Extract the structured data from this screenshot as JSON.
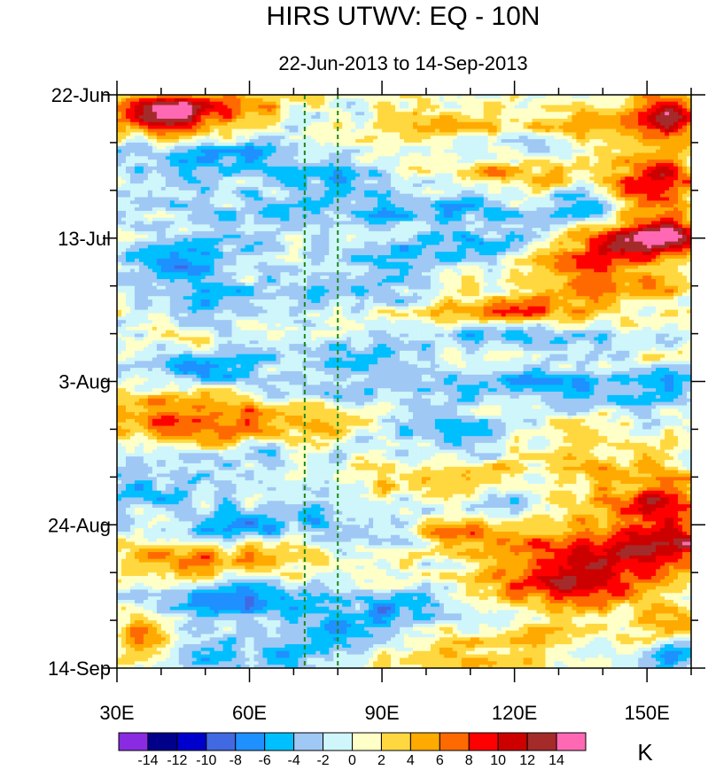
{
  "chart_data": {
    "type": "heatmap",
    "title": "HIRS UTWV: EQ - 10N",
    "subtitle": "22-Jun-2013 to 14-Sep-2013",
    "xlabel": "",
    "ylabel": "",
    "x_range": [
      30,
      160
    ],
    "x_ticks": [
      {
        "value": 30,
        "label": "30E"
      },
      {
        "value": 60,
        "label": "60E"
      },
      {
        "value": 90,
        "label": "90E"
      },
      {
        "value": 120,
        "label": "120E"
      },
      {
        "value": 150,
        "label": "150E"
      }
    ],
    "y_range_days": [
      0,
      84
    ],
    "y_ticks": [
      {
        "day": 0,
        "label": "22-Jun"
      },
      {
        "day": 21,
        "label": "13-Jul"
      },
      {
        "day": 42,
        "label": "3-Aug"
      },
      {
        "day": 63,
        "label": "24-Aug"
      },
      {
        "day": 84,
        "label": "14-Sep"
      }
    ],
    "reference_lines_lon": [
      72.5,
      80
    ],
    "reference_line_color": "#1a8a1a",
    "colorbar": {
      "unit": "K",
      "levels": [
        -14,
        -12,
        -10,
        -8,
        -6,
        -4,
        -2,
        0,
        2,
        4,
        6,
        8,
        10,
        12,
        14
      ],
      "level_labels": [
        "-14",
        "-12",
        "-10",
        "-8",
        "-6",
        "-4",
        "-2",
        "0",
        "2",
        "4",
        "6",
        "8",
        "10",
        "12",
        "14"
      ],
      "colors": [
        "#8a2be2",
        "#00008b",
        "#0000cd",
        "#4169e1",
        "#1e90ff",
        "#00bfff",
        "#a0c8f5",
        "#cff6fa",
        "#ffffc8",
        "#ffd840",
        "#ffaa00",
        "#ff6a00",
        "#ff0000",
        "#cd0000",
        "#a52a2a",
        "#ff69b4"
      ]
    },
    "anomaly_features": [
      {
        "lon": 45,
        "day": 2.5,
        "amp": 10,
        "sx": 8,
        "sy": 2.5
      },
      {
        "lon": 38,
        "day": 3,
        "amp": 6,
        "sx": 6,
        "sy": 2
      },
      {
        "lon": 60,
        "day": 1.5,
        "amp": 4,
        "sx": 8,
        "sy": 1.5
      },
      {
        "lon": 155,
        "day": 3,
        "amp": 11,
        "sx": 6,
        "sy": 2.5
      },
      {
        "lon": 140,
        "day": 4,
        "amp": 5,
        "sx": 8,
        "sy": 2
      },
      {
        "lon": 152,
        "day": 12.5,
        "amp": 12,
        "sx": 6,
        "sy": 2.5
      },
      {
        "lon": 120,
        "day": 11,
        "amp": 5,
        "sx": 12,
        "sy": 2
      },
      {
        "lon": 105,
        "day": 5,
        "amp": 3,
        "sx": 15,
        "sy": 3
      },
      {
        "lon": 60,
        "day": 9,
        "amp": -5,
        "sx": 12,
        "sy": 2
      },
      {
        "lon": 42,
        "day": 10,
        "amp": -4,
        "sx": 8,
        "sy": 2
      },
      {
        "lon": 80,
        "day": 12,
        "amp": -4,
        "sx": 10,
        "sy": 2
      },
      {
        "lon": 120,
        "day": 8,
        "amp": -4,
        "sx": 10,
        "sy": 1.5
      },
      {
        "lon": 135,
        "day": 17,
        "amp": -6,
        "sx": 6,
        "sy": 1.5
      },
      {
        "lon": 100,
        "day": 17,
        "amp": -5,
        "sx": 18,
        "sy": 2
      },
      {
        "lon": 60,
        "day": 17,
        "amp": -3,
        "sx": 15,
        "sy": 2
      },
      {
        "lon": 140,
        "day": 23,
        "amp": 8,
        "sx": 10,
        "sy": 2.5
      },
      {
        "lon": 155,
        "day": 21,
        "amp": 10,
        "sx": 5,
        "sy": 1.5
      },
      {
        "lon": 150,
        "day": 20,
        "amp": 6,
        "sx": 8,
        "sy": 2
      },
      {
        "lon": 45,
        "day": 24,
        "amp": -7,
        "sx": 12,
        "sy": 2
      },
      {
        "lon": 110,
        "day": 22,
        "amp": -5,
        "sx": 12,
        "sy": 1.5
      },
      {
        "lon": 90,
        "day": 24,
        "amp": -3,
        "sx": 10,
        "sy": 2
      },
      {
        "lon": 115,
        "day": 32,
        "amp": 6,
        "sx": 12,
        "sy": 1.5
      },
      {
        "lon": 145,
        "day": 28,
        "amp": 5,
        "sx": 10,
        "sy": 2
      },
      {
        "lon": 130,
        "day": 30,
        "amp": 4,
        "sx": 10,
        "sy": 2
      },
      {
        "lon": 55,
        "day": 30,
        "amp": -4,
        "sx": 15,
        "sy": 2
      },
      {
        "lon": 90,
        "day": 29,
        "amp": -3,
        "sx": 10,
        "sy": 2
      },
      {
        "lon": 120,
        "day": 35,
        "amp": -5,
        "sx": 15,
        "sy": 1.5
      },
      {
        "lon": 50,
        "day": 40,
        "amp": -7,
        "sx": 10,
        "sy": 1.5
      },
      {
        "lon": 80,
        "day": 38,
        "amp": -3,
        "sx": 12,
        "sy": 2
      },
      {
        "lon": 75,
        "day": 43.5,
        "amp": -6,
        "sx": 12,
        "sy": 1
      },
      {
        "lon": 120,
        "day": 42,
        "amp": -5,
        "sx": 15,
        "sy": 2
      },
      {
        "lon": 155,
        "day": 42,
        "amp": -5,
        "sx": 8,
        "sy": 1.5
      },
      {
        "lon": 140,
        "day": 45,
        "amp": -4,
        "sx": 12,
        "sy": 2
      },
      {
        "lon": 45,
        "day": 48,
        "amp": 8,
        "sx": 14,
        "sy": 3
      },
      {
        "lon": 75,
        "day": 47,
        "amp": 4,
        "sx": 12,
        "sy": 2
      },
      {
        "lon": 130,
        "day": 47,
        "amp": 3,
        "sx": 10,
        "sy": 2
      },
      {
        "lon": 105,
        "day": 49,
        "amp": -4,
        "sx": 12,
        "sy": 2
      },
      {
        "lon": 55,
        "day": 53,
        "amp": -3,
        "sx": 15,
        "sy": 2
      },
      {
        "lon": 100,
        "day": 57,
        "amp": 5,
        "sx": 15,
        "sy": 2
      },
      {
        "lon": 140,
        "day": 55,
        "amp": 4,
        "sx": 10,
        "sy": 2
      },
      {
        "lon": 155,
        "day": 59,
        "amp": 9,
        "sx": 5,
        "sy": 2.5
      },
      {
        "lon": 140,
        "day": 60,
        "amp": 6,
        "sx": 10,
        "sy": 2
      },
      {
        "lon": 40,
        "day": 58,
        "amp": -4,
        "sx": 10,
        "sy": 2
      },
      {
        "lon": 120,
        "day": 60,
        "amp": -4,
        "sx": 12,
        "sy": 2
      },
      {
        "lon": 80,
        "day": 59,
        "amp": -3,
        "sx": 12,
        "sy": 1.5
      },
      {
        "lon": 60,
        "day": 63,
        "amp": -6,
        "sx": 12,
        "sy": 2
      },
      {
        "lon": 85,
        "day": 64,
        "amp": -4,
        "sx": 10,
        "sy": 2
      },
      {
        "lon": 110,
        "day": 64,
        "amp": 6,
        "sx": 12,
        "sy": 2
      },
      {
        "lon": 140,
        "day": 68,
        "amp": 10,
        "sx": 14,
        "sy": 3
      },
      {
        "lon": 155,
        "day": 65,
        "amp": 10,
        "sx": 8,
        "sy": 2
      },
      {
        "lon": 130,
        "day": 72,
        "amp": 8,
        "sx": 12,
        "sy": 2
      },
      {
        "lon": 45,
        "day": 68,
        "amp": 6,
        "sx": 12,
        "sy": 2
      },
      {
        "lon": 70,
        "day": 67,
        "amp": 4,
        "sx": 10,
        "sy": 2
      },
      {
        "lon": 55,
        "day": 74,
        "amp": -6,
        "sx": 14,
        "sy": 2
      },
      {
        "lon": 95,
        "day": 75,
        "amp": -5,
        "sx": 12,
        "sy": 1.5
      },
      {
        "lon": 80,
        "day": 79,
        "amp": -5,
        "sx": 18,
        "sy": 2
      },
      {
        "lon": 155,
        "day": 77,
        "amp": 5,
        "sx": 8,
        "sy": 2
      },
      {
        "lon": 35,
        "day": 80,
        "amp": 6,
        "sx": 5,
        "sy": 3
      },
      {
        "lon": 120,
        "day": 80,
        "amp": 4,
        "sx": 15,
        "sy": 2
      },
      {
        "lon": 155,
        "day": 82,
        "amp": -5,
        "sx": 8,
        "sy": 1.5
      },
      {
        "lon": 60,
        "day": 83,
        "amp": -4,
        "sx": 15,
        "sy": 1.5
      },
      {
        "lon": 100,
        "day": 83,
        "amp": 3,
        "sx": 15,
        "sy": 1.5
      }
    ]
  }
}
